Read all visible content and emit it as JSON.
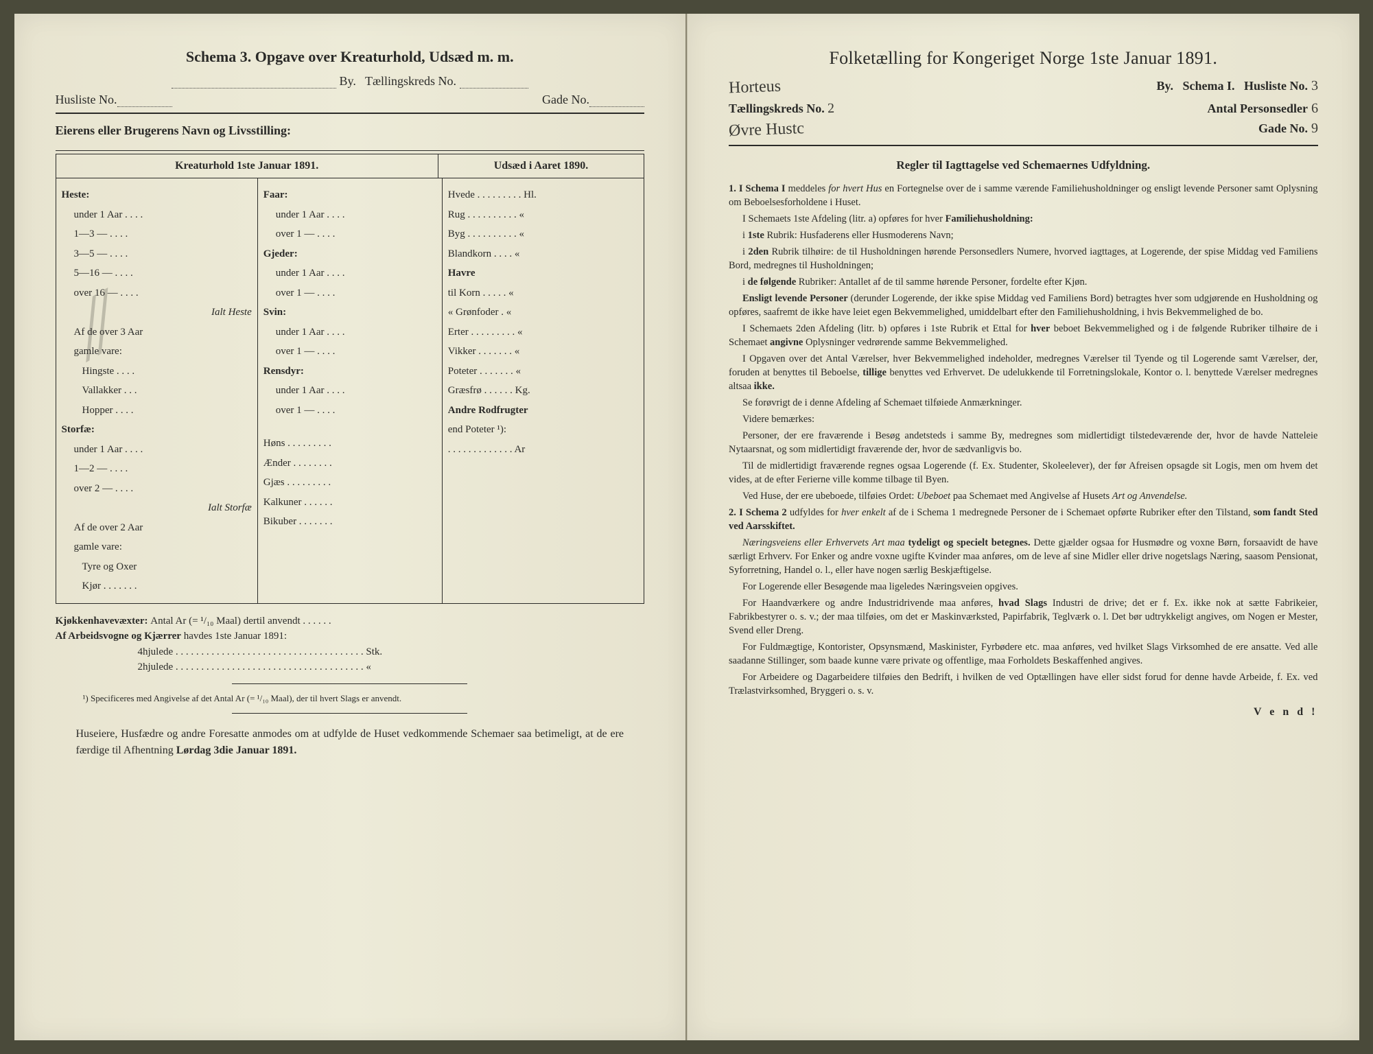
{
  "left": {
    "title": "Schema 3.  Opgave over Kreaturhold, Udsæd m. m.",
    "by_label": "By.",
    "tkreds_label": "Tællingskreds No.",
    "husliste_label": "Husliste No.",
    "gade_label": "Gade No.",
    "owner_label": "Eierens eller Brugerens Navn og Livsstilling:",
    "col_head_left": "Kreaturhold 1ste Januar 1891.",
    "col_head_right": "Udsæd i Aaret 1890.",
    "heste": {
      "title": "Heste:",
      "rows": [
        "under 1 Aar . . . .",
        "1—3   —   . . . .",
        "3—5   —   . . . .",
        "5—16  —   . . . .",
        "over 16 —   . . . ."
      ],
      "ialt": "Ialt Heste",
      "over3": "Af de over 3 Aar",
      "gamle": "gamle vare:",
      "sub": [
        "Hingste . . . .",
        "Vallakker . . .",
        "Hopper . . . ."
      ]
    },
    "storfae": {
      "title": "Storfæ:",
      "rows": [
        "under 1 Aar . . . .",
        "1—2   —   . . . .",
        "over 2 —   . . . ."
      ],
      "ialt": "Ialt Storfæ",
      "over2": "Af de over 2 Aar",
      "gamle": "gamle vare:",
      "sub": [
        "Tyre og Oxer",
        "Kjør . . . . . . ."
      ]
    },
    "faar": {
      "title": "Faar:",
      "rows": [
        "under 1 Aar . . . .",
        "over 1 —   . . . ."
      ]
    },
    "gjeder": {
      "title": "Gjeder:",
      "rows": [
        "under 1 Aar . . . .",
        "over 1 —   . . . ."
      ]
    },
    "svin": {
      "title": "Svin:",
      "rows": [
        "under 1 Aar . . . .",
        "over 1 —   . . . ."
      ]
    },
    "rensdyr": {
      "title": "Rensdyr:",
      "rows": [
        "under 1 Aar . . . .",
        "over 1 —   . . . ."
      ]
    },
    "other_animals": [
      "Høns . . . . . . . . .",
      "Ænder . . . . . . . .",
      "Gjæs . . . . . . . . .",
      "Kalkuner . . . . . .",
      "Bikuber . . . . . . ."
    ],
    "udsaed": {
      "rows": [
        "Hvede . . . . . . . . . Hl.",
        "Rug . . . . . . . . . .  «",
        "Byg . . . . . . . . . .  «",
        "Blandkorn . . . .  «",
        "Havre",
        "  til Korn . . . . .  «",
        "  «  Grønfoder .  «",
        "Erter . . . . . . . . .  «",
        "Vikker . . . . . . .  «",
        "Poteter . . . . . . .  «",
        "Græsfrø . . . . . . Kg.",
        "Andre Rodfrugter",
        "  end Poteter ¹):",
        ". . . . . . . . . . . . . Ar"
      ]
    },
    "kjokken_label": "Kjøkkenhavevæxter:",
    "kjokken_text": "Antal Ar (= ¹/₁₀ Maal) dertil anvendt . . . . . .",
    "arbeids_label": "Af Arbeidsvogne og Kjærrer",
    "arbeids_text": "havdes 1ste Januar 1891:",
    "hjul4": "4hjulede . . . . . . . . . . . . . . . . . . . . . . . . . . . . . . . . . . . . . Stk.",
    "hjul2": "2hjulede . . . . . . . . . . . . . . . . . . . . . . . . . . . . . . . . . . . . .  «",
    "footnote": "¹) Specificeres med Angivelse af det Antal Ar (= ¹/₁₀ Maal), der til hvert Slags er anvendt.",
    "closing": "Huseiere, Husfædre og andre Foresatte anmodes om at udfylde de Huset vedkommende Schemaer saa betimeligt, at de ere færdige til Afhentning Lørdag 3die Januar 1891.",
    "closing_bold": "Lørdag 3die Januar 1891."
  },
  "right": {
    "title": "Folketælling for Kongeriget Norge 1ste Januar 1891.",
    "by_label": "By.",
    "schema_label": "Schema I.",
    "husliste_label": "Husliste No.",
    "husliste_val": "3",
    "city_hand": "Horteus",
    "tkreds_label": "Tællingskreds No.",
    "tkreds_val": "2",
    "antal_label": "Antal Personsedler",
    "antal_val": "6",
    "street_hand": "Øvre Hustc",
    "gade_label": "Gade No.",
    "gade_val": "9",
    "rules_title": "Regler til Iagttagelse ved Schemaernes Udfyldning.",
    "rules": [
      {
        "n": "1.",
        "t": "I Schema I meddeles for hvert Hus en Fortegnelse over de i samme værende Familiehusholdninger og ensligt levende Personer samt Oplysning om Beboelsesforholdene i Huset.",
        "b": [
          "I Schema I"
        ],
        "i": [
          "for hvert Hus"
        ]
      },
      {
        "t": "I Schemaets 1ste Afdeling (litr. a) opføres for hver Familiehusholdning:",
        "b": [
          "Familiehusholdning:"
        ]
      },
      {
        "t": "i 1ste Rubrik: Husfaderens eller Husmoderens Navn;",
        "b": [
          "1ste"
        ]
      },
      {
        "t": "i 2den Rubrik tilhøire: de til Husholdningen hørende Personsedlers Numere, hvorved iagttages, at Logerende, der spise Middag ved Familiens Bord, medregnes til Husholdningen;",
        "b": [
          "2den"
        ]
      },
      {
        "t": "i de følgende Rubriker: Antallet af de til samme hørende Personer, fordelte efter Kjøn.",
        "b": [
          "de følgende"
        ]
      },
      {
        "t": "Ensligt levende Personer (derunder Logerende, der ikke spise Middag ved Familiens Bord) betragtes hver som udgjørende en Husholdning og opføres, saafremt de ikke have leiet egen Bekvemmelighed, umiddelbart efter den Familiehusholdning, i hvis Bekvemmelighed de bo.",
        "b": [
          "Ensligt levende Personer"
        ]
      },
      {
        "t": "I Schemaets 2den Afdeling (litr. b) opføres i 1ste Rubrik et Ettal for hver beboet Bekvemmelighed og i de følgende Rubriker tilhøire de i Schemaet angivne Oplysninger vedrørende samme Bekvemmelighed.",
        "b": [
          "hver",
          "angivne"
        ]
      },
      {
        "t": "I Opgaven over det Antal Værelser, hver Bekvemmelighed indeholder, medregnes Værelser til Tyende og til Logerende samt Værelser, der, foruden at benyttes til Beboelse, tillige benyttes ved Erhvervet. De udelukkende til Forretningslokale, Kontor o. l. benyttede Værelser medregnes altsaa ikke.",
        "b": [
          "tillige",
          "ikke."
        ]
      },
      {
        "t": "Se forøvrigt de i denne Afdeling af Schemaet tilføiede Anmærkninger."
      },
      {
        "t": "Videre bemærkes:"
      },
      {
        "t": "Personer, der ere fraværende i Besøg andetsteds i samme By, medregnes som midlertidigt tilstedeværende der, hvor de havde Natteleie Nytaarsnat, og som midlertidigt fraværende der, hvor de sædvanligvis bo."
      },
      {
        "t": "Til de midlertidigt fraværende regnes ogsaa Logerende (f. Ex. Studenter, Skoleelever), der før Afreisen opsagde sit Logis, men om hvem det vides, at de efter Ferierne ville komme tilbage til Byen."
      },
      {
        "t": "Ved Huse, der ere ubeboede, tilføies Ordet: Ubeboet paa Schemaet med Angivelse af Husets Art og Anvendelse.",
        "i": [
          "Ubeboet",
          "Art og Anvendelse."
        ]
      },
      {
        "n": "2.",
        "t": "I Schema 2 udfyldes for hver enkelt af de i Schema 1 medregnede Personer de i Schemaet opførte Rubriker efter den Tilstand, som fandt Sted ved Aarsskiftet.",
        "b": [
          "I Schema 2",
          "som fandt Sted ved Aarsskiftet."
        ],
        "i": [
          "hver enkelt"
        ]
      },
      {
        "t": "Næringsveiens eller Erhvervets Art maa tydeligt og specielt betegnes. Dette gjælder ogsaa for Husmødre og voxne Børn, forsaavidt de have særligt Erhverv. For Enker og andre voxne ugifte Kvinder maa anføres, om de leve af sine Midler eller drive nogetslags Næring, saasom Pensionat, Syforretning, Handel o. l., eller have nogen særlig Beskjæftigelse.",
        "i": [
          "Næringsveiens eller Erhvervets Art maa"
        ],
        "b": [
          "tydeligt og specielt betegnes."
        ]
      },
      {
        "t": "For Logerende eller Besøgende maa ligeledes Næringsveien opgives."
      },
      {
        "t": "For Haandværkere og andre Industridrivende maa anføres, hvad Slags Industri de drive; det er f. Ex. ikke nok at sætte Fabrikeier, Fabrikbestyrer o. s. v.; der maa tilføies, om det er Maskinværksted, Papirfabrik, Teglværk o. l. Det bør udtrykkeligt angives, om Nogen er Mester, Svend eller Dreng.",
        "b": [
          "hvad Slags"
        ]
      },
      {
        "t": "For Fuldmægtige, Kontorister, Opsynsmænd, Maskinister, Fyrbødere etc. maa anføres, ved hvilket Slags Virksomhed de ere ansatte. Ved alle saadanne Stillinger, som baade kunne være private og offentlige, maa Forholdets Beskaffenhed angives."
      },
      {
        "t": "For Arbeidere og Dagarbeidere tilføies den Bedrift, i hvilken de ved Optællingen have eller sidst forud for denne havde Arbeide, f. Ex. ved Trælastvirksomhed, Bryggeri o. s. v."
      }
    ],
    "vend": "V e n d !"
  },
  "colors": {
    "paper": "#e8e4d0",
    "ink": "#2a2a28",
    "hand": "#3a3a35"
  }
}
